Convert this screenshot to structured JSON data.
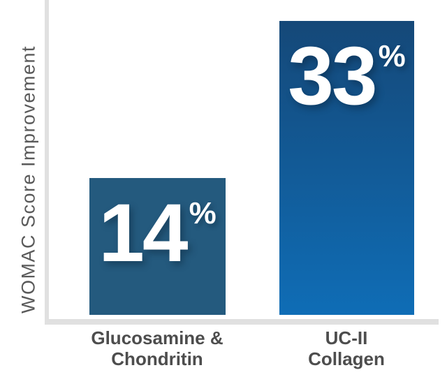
{
  "chart_data": {
    "type": "bar",
    "title": "",
    "xlabel": "",
    "ylabel": "WOMAC Score Improvement",
    "categories": [
      "Glucosamine &\nChondritin",
      "UC-II\nCollagen"
    ],
    "values": [
      14,
      33
    ],
    "ylim": [
      0,
      33
    ],
    "grid": false,
    "legend": "none",
    "bars": [
      {
        "category": "Glucosamine &\nChondritin",
        "value": 14,
        "label": "14",
        "suffix": "%",
        "fill": "solid",
        "color": "#245a7e"
      },
      {
        "category": "UC-II\nCollagen",
        "value": 33,
        "label": "33",
        "suffix": "%",
        "fill": "gradient",
        "gradient_top": "#154878",
        "gradient_bottom": "#0f6db6"
      }
    ],
    "layout_hints": {
      "baseline_y": 451,
      "bar_pixel_heights": [
        196,
        421
      ],
      "axis_color": "#e0e0e0",
      "ylabel_color": "#5a5a5a",
      "category_label_color": "#4d4d4d",
      "value_text_color": "#ffffff"
    }
  }
}
